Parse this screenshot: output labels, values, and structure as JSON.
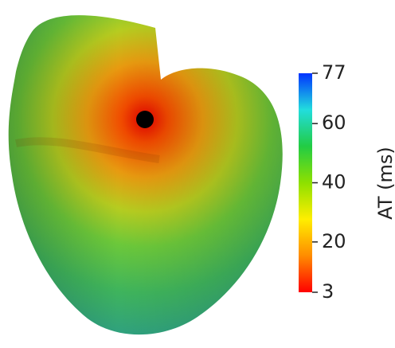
{
  "colorbar": {
    "title": "AT (ms)",
    "range": [
      3,
      77
    ],
    "ticks": [
      3,
      20,
      40,
      60,
      77
    ],
    "colors": [
      "#ff0000",
      "#ff8c00",
      "#ffee00",
      "#8ee000",
      "#22cc44",
      "#22dddd",
      "#0033ff"
    ]
  }
}
